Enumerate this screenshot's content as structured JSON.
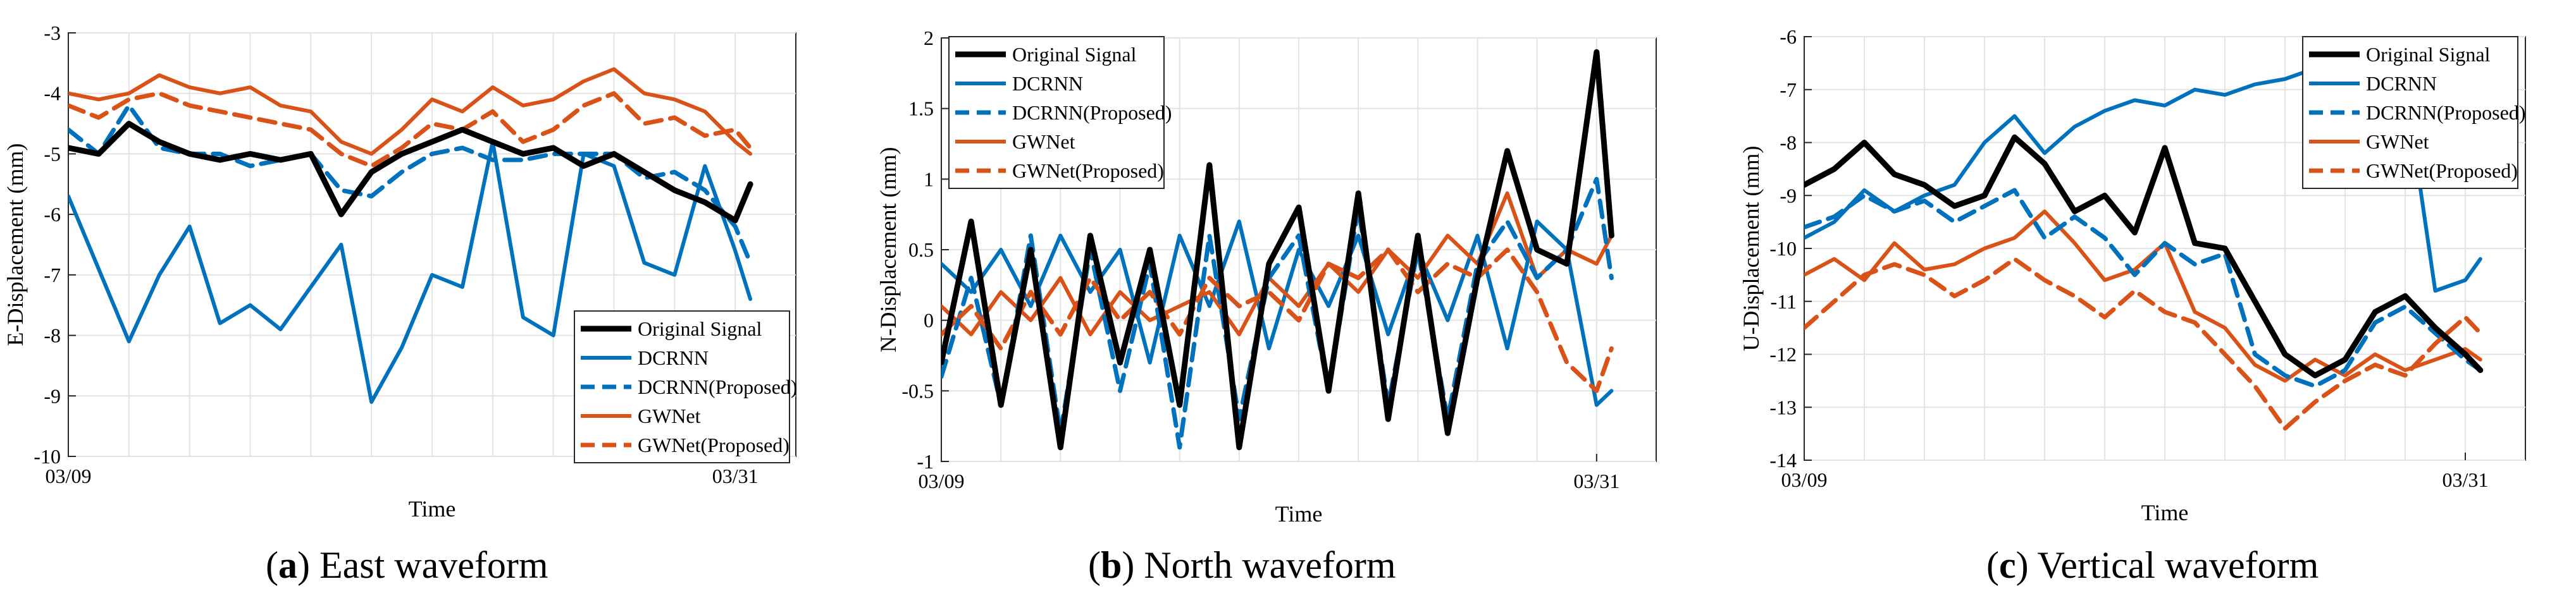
{
  "colors": {
    "original": "#000000",
    "dcrnn": "#0072BD",
    "gwnet": "#D95319",
    "grid": "#e3e3e3",
    "axis": "#262626"
  },
  "chart_data": [
    {
      "type": "line",
      "caption_letter": "a",
      "caption_text": "East waveform",
      "xlabel": "Time",
      "ylabel": "E-Displacement (mm)",
      "ylim": [
        -10,
        -3
      ],
      "yticks": [
        "-3",
        "-4",
        "-5",
        "-6",
        "-7",
        "-8",
        "-9",
        "-10"
      ],
      "xlim": [
        0,
        24
      ],
      "xticks": [
        {
          "x": 0,
          "label": "03/09"
        },
        {
          "x": 22,
          "label": "03/31"
        }
      ],
      "grid": true,
      "legend_position": "bottom-right",
      "x": [
        0,
        1,
        2,
        3,
        4,
        5,
        6,
        7,
        8,
        9,
        10,
        11,
        12,
        13,
        14,
        15,
        16,
        17,
        18,
        19,
        20,
        21,
        22,
        22.5
      ],
      "series": [
        {
          "name": "Original Signal",
          "style": "solid-thick",
          "color": "original",
          "values": [
            -4.9,
            -5.0,
            -4.5,
            -4.8,
            -5.0,
            -5.1,
            -5.0,
            -5.1,
            -5.0,
            -6.0,
            -5.3,
            -5.0,
            -4.8,
            -4.6,
            -4.8,
            -5.0,
            -4.9,
            -5.2,
            -5.0,
            -5.3,
            -5.6,
            -5.8,
            -6.1,
            -5.5
          ]
        },
        {
          "name": "DCRNN",
          "style": "solid",
          "color": "dcrnn",
          "values": [
            -5.7,
            -6.9,
            -8.1,
            -7.0,
            -6.2,
            -7.8,
            -7.5,
            -7.9,
            -7.2,
            -6.5,
            -9.1,
            -8.2,
            -7.0,
            -7.2,
            -4.8,
            -7.7,
            -8.0,
            -5.0,
            -5.2,
            -6.8,
            -7.0,
            -5.2,
            -6.6,
            -7.4
          ]
        },
        {
          "name": "DCRNN(Proposed)",
          "style": "dashed",
          "color": "dcrnn",
          "values": [
            -4.6,
            -5.0,
            -4.2,
            -4.9,
            -5.0,
            -5.0,
            -5.2,
            -5.1,
            -5.0,
            -5.6,
            -5.7,
            -5.3,
            -5.0,
            -4.9,
            -5.1,
            -5.1,
            -5.0,
            -5.0,
            -5.0,
            -5.4,
            -5.3,
            -5.6,
            -6.2,
            -6.8
          ]
        },
        {
          "name": "GWNet",
          "style": "solid",
          "color": "gwnet",
          "values": [
            -4.0,
            -4.1,
            -4.0,
            -3.7,
            -3.9,
            -4.0,
            -3.9,
            -4.2,
            -4.3,
            -4.8,
            -5.0,
            -4.6,
            -4.1,
            -4.3,
            -3.9,
            -4.2,
            -4.1,
            -3.8,
            -3.6,
            -4.0,
            -4.1,
            -4.3,
            -4.8,
            -5.0
          ]
        },
        {
          "name": "GWNet(Proposed)",
          "style": "dashed",
          "color": "gwnet",
          "values": [
            -4.2,
            -4.4,
            -4.1,
            -4.0,
            -4.2,
            -4.3,
            -4.4,
            -4.5,
            -4.6,
            -5.0,
            -5.2,
            -4.9,
            -4.5,
            -4.6,
            -4.3,
            -4.8,
            -4.6,
            -4.2,
            -4.0,
            -4.5,
            -4.4,
            -4.7,
            -4.6,
            -4.9
          ]
        }
      ]
    },
    {
      "type": "line",
      "caption_letter": "b",
      "caption_text": "North waveform",
      "xlabel": "Time",
      "ylabel": "N-Displacement (mm)",
      "ylim": [
        -1,
        2
      ],
      "yticks": [
        "2",
        "1.5",
        "1",
        "0.5",
        "0",
        "-0.5",
        "-1"
      ],
      "xlim": [
        0,
        24
      ],
      "xticks": [
        {
          "x": 0,
          "label": "03/09"
        },
        {
          "x": 22,
          "label": "03/31"
        }
      ],
      "grid": true,
      "legend_position": "top-left",
      "x": [
        0,
        1,
        2,
        3,
        4,
        5,
        6,
        7,
        8,
        9,
        10,
        11,
        12,
        13,
        14,
        15,
        16,
        17,
        18,
        19,
        20,
        21,
        22,
        22.5
      ],
      "series": [
        {
          "name": "Original Signal",
          "style": "solid-thick",
          "color": "original",
          "values": [
            -0.3,
            0.7,
            -0.6,
            0.5,
            -0.9,
            0.6,
            -0.3,
            0.5,
            -0.6,
            1.1,
            -0.9,
            0.4,
            0.8,
            -0.5,
            0.9,
            -0.7,
            0.6,
            -0.8,
            0.3,
            1.2,
            0.5,
            0.4,
            1.9,
            0.6
          ]
        },
        {
          "name": "DCRNN",
          "style": "solid",
          "color": "dcrnn",
          "values": [
            0.4,
            0.2,
            0.5,
            0.1,
            0.6,
            0.2,
            0.5,
            -0.3,
            0.6,
            0.1,
            0.7,
            -0.2,
            0.5,
            0.1,
            0.6,
            -0.1,
            0.5,
            0.0,
            0.6,
            -0.2,
            0.7,
            0.5,
            -0.6,
            -0.5
          ]
        },
        {
          "name": "DCRNN(Proposed)",
          "style": "dashed",
          "color": "dcrnn",
          "values": [
            -0.4,
            0.3,
            -0.6,
            0.6,
            -0.8,
            0.5,
            -0.5,
            0.4,
            -0.9,
            0.6,
            -0.7,
            0.3,
            0.6,
            -0.5,
            0.8,
            -0.6,
            0.5,
            -0.7,
            0.4,
            0.7,
            0.3,
            0.5,
            1.0,
            0.3
          ]
        },
        {
          "name": "GWNet",
          "style": "solid",
          "color": "gwnet",
          "values": [
            0.1,
            -0.1,
            0.2,
            0.0,
            0.3,
            -0.1,
            0.2,
            0.0,
            0.1,
            0.2,
            -0.1,
            0.3,
            0.1,
            0.4,
            0.2,
            0.5,
            0.3,
            0.6,
            0.4,
            0.9,
            0.3,
            0.5,
            0.4,
            0.6
          ]
        },
        {
          "name": "GWNet(Proposed)",
          "style": "dashed",
          "color": "gwnet",
          "values": [
            -0.1,
            0.1,
            -0.2,
            0.2,
            -0.1,
            0.3,
            0.0,
            0.2,
            -0.1,
            0.3,
            0.1,
            0.2,
            0.0,
            0.4,
            0.3,
            0.5,
            0.2,
            0.4,
            0.3,
            0.5,
            0.2,
            -0.3,
            -0.5,
            -0.2
          ]
        }
      ]
    },
    {
      "type": "line",
      "caption_letter": "c",
      "caption_text": "Vertical waveform",
      "xlabel": "Time",
      "ylabel": "U-Displacement (mm)",
      "ylim": [
        -14,
        -6
      ],
      "yticks": [
        "-6",
        "-7",
        "-8",
        "-9",
        "-10",
        "-11",
        "-12",
        "-13",
        "-14"
      ],
      "xlim": [
        0,
        24
      ],
      "xticks": [
        {
          "x": 0,
          "label": "03/09"
        },
        {
          "x": 22,
          "label": "03/31"
        }
      ],
      "grid": true,
      "legend_position": "top-right",
      "x": [
        0,
        1,
        2,
        3,
        4,
        5,
        6,
        7,
        8,
        9,
        10,
        11,
        12,
        13,
        14,
        15,
        16,
        17,
        18,
        19,
        20,
        21,
        22,
        22.5
      ],
      "series": [
        {
          "name": "Original Signal",
          "style": "solid-thick",
          "color": "original",
          "values": [
            -8.8,
            -8.5,
            -8.0,
            -8.6,
            -8.8,
            -9.2,
            -9.0,
            -7.9,
            -8.4,
            -9.3,
            -9.0,
            -9.7,
            -8.1,
            -9.9,
            -10.0,
            -11.0,
            -12.0,
            -12.4,
            -12.1,
            -11.2,
            -10.9,
            -11.5,
            -12.0,
            -12.3
          ]
        },
        {
          "name": "DCRNN",
          "style": "solid",
          "color": "dcrnn",
          "values": [
            -9.8,
            -9.5,
            -8.9,
            -9.3,
            -9.0,
            -8.8,
            -8.0,
            -7.5,
            -8.2,
            -7.7,
            -7.4,
            -7.2,
            -7.3,
            -7.0,
            -7.1,
            -6.9,
            -6.8,
            -6.6,
            -6.5,
            -6.7,
            -6.9,
            -10.8,
            -10.6,
            -10.2
          ]
        },
        {
          "name": "DCRNN(Proposed)",
          "style": "dashed",
          "color": "dcrnn",
          "values": [
            -9.6,
            -9.4,
            -9.0,
            -9.3,
            -9.1,
            -9.5,
            -9.2,
            -8.9,
            -9.8,
            -9.4,
            -9.8,
            -10.5,
            -9.9,
            -10.3,
            -10.1,
            -12.0,
            -12.4,
            -12.6,
            -12.3,
            -11.4,
            -11.1,
            -11.6,
            -12.1,
            -12.3
          ]
        },
        {
          "name": "GWNet",
          "style": "solid",
          "color": "gwnet",
          "values": [
            -10.5,
            -10.2,
            -10.6,
            -9.9,
            -10.4,
            -10.3,
            -10.0,
            -9.8,
            -9.3,
            -9.9,
            -10.6,
            -10.4,
            -9.9,
            -11.2,
            -11.5,
            -12.2,
            -12.5,
            -12.1,
            -12.4,
            -12.0,
            -12.3,
            -12.1,
            -11.9,
            -12.1
          ]
        },
        {
          "name": "GWNet(Proposed)",
          "style": "dashed",
          "color": "gwnet",
          "values": [
            -11.5,
            -11.0,
            -10.5,
            -10.3,
            -10.5,
            -10.9,
            -10.6,
            -10.2,
            -10.6,
            -10.9,
            -11.3,
            -10.8,
            -11.2,
            -11.4,
            -12.0,
            -12.6,
            -13.4,
            -12.9,
            -12.5,
            -12.2,
            -12.4,
            -11.8,
            -11.3,
            -11.6
          ]
        }
      ]
    }
  ]
}
